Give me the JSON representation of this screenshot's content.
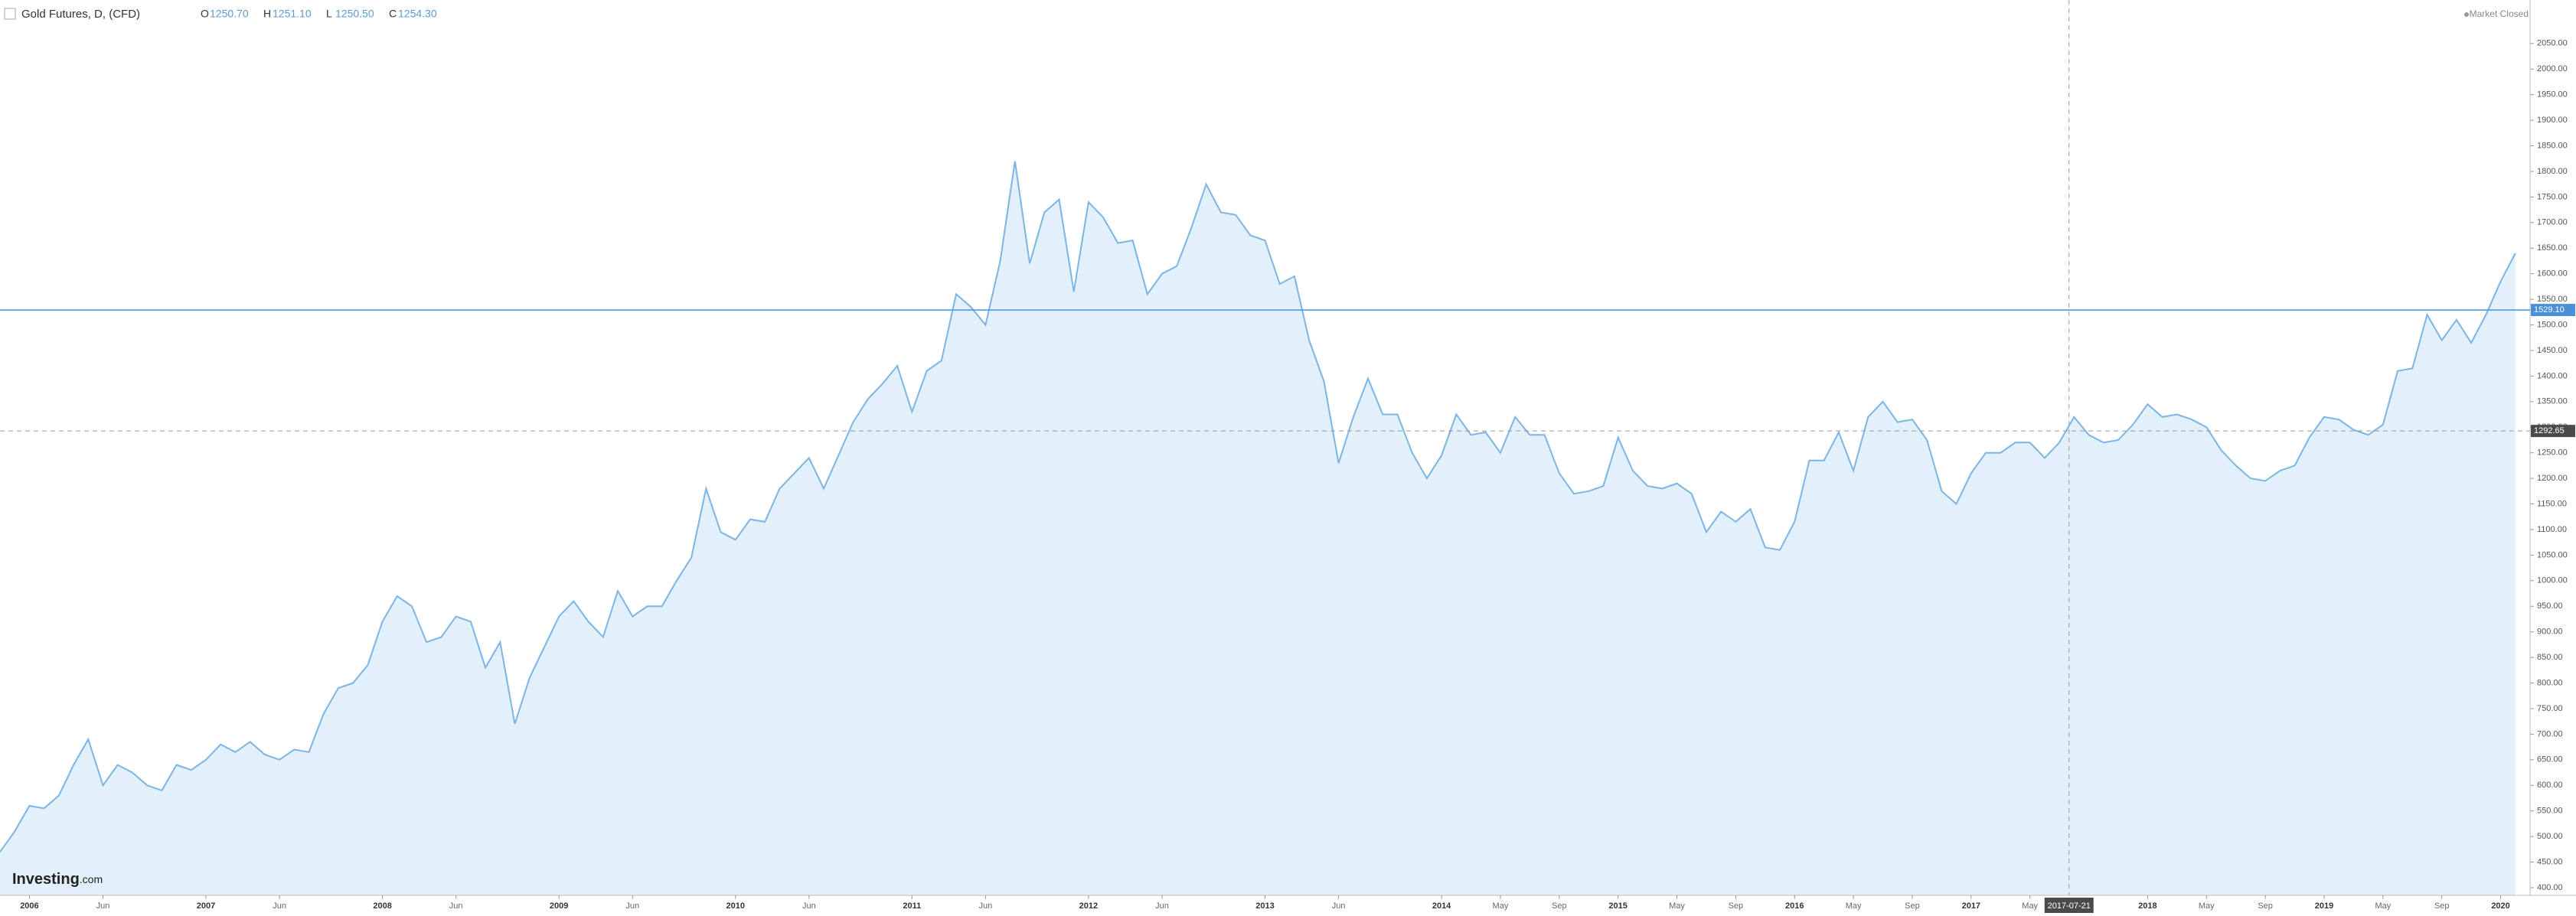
{
  "chart_data": {
    "type": "area",
    "title": "Gold Futures, D, (CFD)",
    "ohlc": [
      {
        "key": "O",
        "value": 1250.7,
        "label": "1250.70"
      },
      {
        "key": "H",
        "value": 1251.1,
        "label": "1251.10"
      },
      {
        "key": "L",
        "value": 1250.5,
        "label": "1250.50"
      },
      {
        "key": "C",
        "value": 1254.3,
        "label": "1254.30"
      }
    ],
    "status": "Market Closed",
    "logo": {
      "name": "Investing",
      "suffix": ".com"
    },
    "color": "#7db4e6",
    "fill_color": "#e2f0fa",
    "x": [
      "2005-11",
      "2005-12",
      "2006-01",
      "2006-02",
      "2006-03",
      "2006-04",
      "2006-05",
      "2006-06",
      "2006-07",
      "2006-08",
      "2006-09",
      "2006-10",
      "2006-11",
      "2006-12",
      "2007-01",
      "2007-02",
      "2007-03",
      "2007-04",
      "2007-05",
      "2007-06",
      "2007-07",
      "2007-08",
      "2007-09",
      "2007-10",
      "2007-11",
      "2007-12",
      "2008-01",
      "2008-02",
      "2008-03",
      "2008-04",
      "2008-05",
      "2008-06",
      "2008-07",
      "2008-08",
      "2008-09",
      "2008-10",
      "2008-11",
      "2008-12",
      "2009-01",
      "2009-02",
      "2009-03",
      "2009-04",
      "2009-05",
      "2009-06",
      "2009-07",
      "2009-08",
      "2009-09",
      "2009-10",
      "2009-11",
      "2009-12",
      "2010-01",
      "2010-02",
      "2010-03",
      "2010-04",
      "2010-05",
      "2010-06",
      "2010-07",
      "2010-08",
      "2010-09",
      "2010-10",
      "2010-11",
      "2010-12",
      "2011-01",
      "2011-02",
      "2011-03",
      "2011-04",
      "2011-05",
      "2011-06",
      "2011-07",
      "2011-08",
      "2011-09",
      "2011-10",
      "2011-11",
      "2011-12",
      "2012-01",
      "2012-02",
      "2012-03",
      "2012-04",
      "2012-05",
      "2012-06",
      "2012-07",
      "2012-08",
      "2012-09",
      "2012-10",
      "2012-11",
      "2012-12",
      "2013-01",
      "2013-02",
      "2013-03",
      "2013-04",
      "2013-05",
      "2013-06",
      "2013-07",
      "2013-08",
      "2013-09",
      "2013-10",
      "2013-11",
      "2013-12",
      "2014-01",
      "2014-02",
      "2014-03",
      "2014-04",
      "2014-05",
      "2014-06",
      "2014-07",
      "2014-08",
      "2014-09",
      "2014-10",
      "2014-11",
      "2014-12",
      "2015-01",
      "2015-02",
      "2015-03",
      "2015-04",
      "2015-05",
      "2015-06",
      "2015-07",
      "2015-08",
      "2015-09",
      "2015-10",
      "2015-11",
      "2015-12",
      "2016-01",
      "2016-02",
      "2016-03",
      "2016-04",
      "2016-05",
      "2016-06",
      "2016-07",
      "2016-08",
      "2016-09",
      "2016-10",
      "2016-11",
      "2016-12",
      "2017-01",
      "2017-02",
      "2017-03",
      "2017-04",
      "2017-05",
      "2017-06",
      "2017-07",
      "2017-08",
      "2017-09",
      "2017-10",
      "2017-11",
      "2017-12",
      "2018-01",
      "2018-02",
      "2018-03",
      "2018-04",
      "2018-05",
      "2018-06",
      "2018-07",
      "2018-08",
      "2018-09",
      "2018-10",
      "2018-11",
      "2018-12",
      "2019-01",
      "2019-02",
      "2019-03",
      "2019-04",
      "2019-05",
      "2019-06",
      "2019-07",
      "2019-08",
      "2019-09",
      "2019-10",
      "2019-11",
      "2019-12",
      "2020-01",
      "2020-02"
    ],
    "values": [
      470,
      510,
      560,
      555,
      580,
      640,
      690,
      600,
      640,
      625,
      600,
      590,
      640,
      630,
      650,
      680,
      665,
      685,
      660,
      650,
      670,
      665,
      740,
      790,
      800,
      835,
      920,
      970,
      950,
      880,
      890,
      930,
      920,
      830,
      880,
      720,
      810,
      870,
      930,
      960,
      920,
      890,
      980,
      930,
      950,
      950,
      1000,
      1045,
      1180,
      1095,
      1080,
      1120,
      1115,
      1180,
      1210,
      1240,
      1180,
      1245,
      1310,
      1355,
      1385,
      1420,
      1330,
      1410,
      1430,
      1560,
      1535,
      1500,
      1625,
      1820,
      1620,
      1720,
      1745,
      1565,
      1740,
      1710,
      1660,
      1665,
      1560,
      1600,
      1615,
      1690,
      1775,
      1720,
      1715,
      1675,
      1665,
      1580,
      1595,
      1470,
      1390,
      1230,
      1320,
      1395,
      1325,
      1325,
      1250,
      1200,
      1245,
      1325,
      1285,
      1290,
      1250,
      1320,
      1285,
      1285,
      1210,
      1170,
      1175,
      1185,
      1280,
      1215,
      1185,
      1180,
      1190,
      1170,
      1095,
      1135,
      1115,
      1140,
      1065,
      1060,
      1115,
      1235,
      1235,
      1290,
      1215,
      1320,
      1350,
      1310,
      1315,
      1275,
      1175,
      1150,
      1210,
      1250,
      1250,
      1270,
      1270,
      1240,
      1270,
      1320,
      1285,
      1270,
      1275,
      1305,
      1345,
      1320,
      1325,
      1315,
      1300,
      1255,
      1225,
      1200,
      1195,
      1215,
      1225,
      1280,
      1320,
      1315,
      1295,
      1285,
      1305,
      1410,
      1415,
      1520,
      1470,
      1510,
      1465,
      1520,
      1585,
      1640
    ],
    "xlim": [
      "2005-11",
      "2020-03"
    ],
    "xticks": [
      {
        "value": "2006-01",
        "label": "2006"
      },
      {
        "value": "2006-06",
        "label": "Jun"
      },
      {
        "value": "2007-01",
        "label": "2007"
      },
      {
        "value": "2007-06",
        "label": "Jun"
      },
      {
        "value": "2008-01",
        "label": "2008"
      },
      {
        "value": "2008-06",
        "label": "Jun"
      },
      {
        "value": "2009-01",
        "label": "2009"
      },
      {
        "value": "2009-06",
        "label": "Jun"
      },
      {
        "value": "2010-01",
        "label": "2010"
      },
      {
        "value": "2010-06",
        "label": "Jun"
      },
      {
        "value": "2011-01",
        "label": "2011"
      },
      {
        "value": "2011-06",
        "label": "Jun"
      },
      {
        "value": "2012-01",
        "label": "2012"
      },
      {
        "value": "2012-06",
        "label": "Jun"
      },
      {
        "value": "2013-01",
        "label": "2013"
      },
      {
        "value": "2013-06",
        "label": "Jun"
      },
      {
        "value": "2014-01",
        "label": "2014"
      },
      {
        "value": "2014-05",
        "label": "May"
      },
      {
        "value": "2014-09",
        "label": "Sep"
      },
      {
        "value": "2015-01",
        "label": "2015"
      },
      {
        "value": "2015-05",
        "label": "May"
      },
      {
        "value": "2015-09",
        "label": "Sep"
      },
      {
        "value": "2016-01",
        "label": "2016"
      },
      {
        "value": "2016-05",
        "label": "May"
      },
      {
        "value": "2016-09",
        "label": "Sep"
      },
      {
        "value": "2017-01",
        "label": "2017"
      },
      {
        "value": "2017-05",
        "label": "May"
      },
      {
        "value": "2018-01",
        "label": "2018"
      },
      {
        "value": "2018-05",
        "label": "May"
      },
      {
        "value": "2018-09",
        "label": "Sep"
      },
      {
        "value": "2019-01",
        "label": "2019"
      },
      {
        "value": "2019-05",
        "label": "May"
      },
      {
        "value": "2019-09",
        "label": "Sep"
      },
      {
        "value": "2020-01",
        "label": "2020"
      }
    ],
    "ylim": [
      385,
      2135
    ],
    "yticks": [
      {
        "value": 400,
        "label": "400.00"
      },
      {
        "value": 450,
        "label": "450.00"
      },
      {
        "value": 500,
        "label": "500.00"
      },
      {
        "value": 550,
        "label": "550.00"
      },
      {
        "value": 600,
        "label": "600.00"
      },
      {
        "value": 650,
        "label": "650.00"
      },
      {
        "value": 700,
        "label": "700.00"
      },
      {
        "value": 750,
        "label": "750.00"
      },
      {
        "value": 800,
        "label": "800.00"
      },
      {
        "value": 850,
        "label": "850.00"
      },
      {
        "value": 900,
        "label": "900.00"
      },
      {
        "value": 950,
        "label": "950.00"
      },
      {
        "value": 1000,
        "label": "1000.00"
      },
      {
        "value": 1050,
        "label": "1050.00"
      },
      {
        "value": 1100,
        "label": "1100.00"
      },
      {
        "value": 1150,
        "label": "1150.00"
      },
      {
        "value": 1200,
        "label": "1200.00"
      },
      {
        "value": 1250,
        "label": "1250.00"
      },
      {
        "value": 1300,
        "label": "1300.00"
      },
      {
        "value": 1350,
        "label": "1350.00"
      },
      {
        "value": 1400,
        "label": "1400.00"
      },
      {
        "value": 1450,
        "label": "1450.00"
      },
      {
        "value": 1500,
        "label": "1500.00"
      },
      {
        "value": 1550,
        "label": "1550.00"
      },
      {
        "value": 1600,
        "label": "1600.00"
      },
      {
        "value": 1650,
        "label": "1650.00"
      },
      {
        "value": 1700,
        "label": "1700.00"
      },
      {
        "value": 1750,
        "label": "1750.00"
      },
      {
        "value": 1800,
        "label": "1800.00"
      },
      {
        "value": 1850,
        "label": "1850.00"
      },
      {
        "value": 1900,
        "label": "1900.00"
      },
      {
        "value": 1950,
        "label": "1950.00"
      },
      {
        "value": 2000,
        "label": "2000.00"
      },
      {
        "value": 2050,
        "label": "2050.00"
      }
    ],
    "last_price": {
      "value": 1529.1,
      "label": "1529.10",
      "color": "#4a90d9"
    },
    "crosshair": {
      "x": "2017-07-21",
      "y": {
        "value": 1292.65,
        "label": "1292.65"
      }
    }
  }
}
